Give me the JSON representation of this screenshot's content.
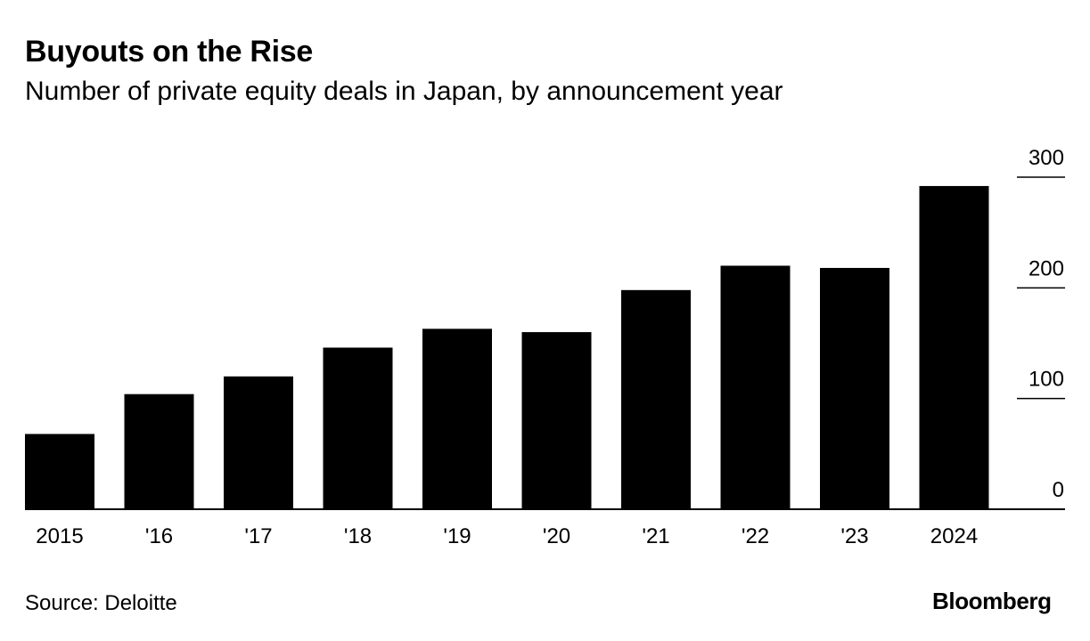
{
  "colors": {
    "bar": "#000000",
    "text": "#000000",
    "background": "#ffffff"
  },
  "chart_data": {
    "type": "bar",
    "title": "Buyouts on the Rise",
    "subtitle": "Number of private equity deals in Japan, by announcement year",
    "categories": [
      "2015",
      "'16",
      "'17",
      "'18",
      "'19",
      "'20",
      "'21",
      "'22",
      "'23",
      "2024"
    ],
    "values": [
      68,
      104,
      120,
      146,
      163,
      160,
      198,
      220,
      218,
      292
    ],
    "xlabel": "",
    "ylabel": "",
    "ylim": [
      0,
      300
    ],
    "yticks": [
      0,
      100,
      200,
      300
    ],
    "ytick_labels": [
      "0",
      "100",
      "200",
      "300"
    ],
    "yaxis_position": "right",
    "grid": false
  },
  "footer": {
    "source": "Source: Deloitte",
    "brand": "Bloomberg"
  }
}
